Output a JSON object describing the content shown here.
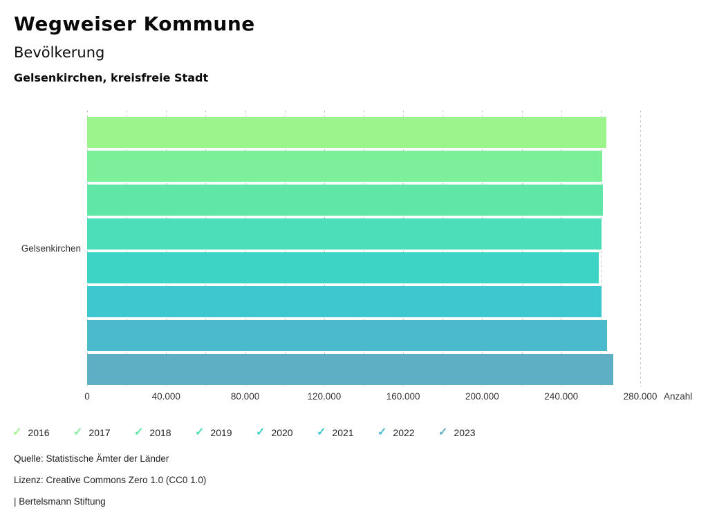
{
  "header": {
    "title": "Wegweiser Kommune",
    "subtitle": "Bevölkerung",
    "region": "Gelsenkirchen, kreisfreie Stadt"
  },
  "chart_data": {
    "type": "bar",
    "orientation": "horizontal",
    "category": "Gelsenkirchen",
    "series": [
      {
        "name": "2016",
        "value": 262800,
        "color": "#9bf58c"
      },
      {
        "name": "2017",
        "value": 260800,
        "color": "#7dee99"
      },
      {
        "name": "2018",
        "value": 261000,
        "color": "#60e7a8"
      },
      {
        "name": "2019",
        "value": 260300,
        "color": "#4bdeb8"
      },
      {
        "name": "2020",
        "value": 259100,
        "color": "#3dd4c6"
      },
      {
        "name": "2021",
        "value": 260300,
        "color": "#3fc7cf"
      },
      {
        "name": "2022",
        "value": 263200,
        "color": "#4bbacd"
      },
      {
        "name": "2023",
        "value": 266400,
        "color": "#5eaec4"
      }
    ],
    "xlabel": "Anzahl",
    "xlim": [
      0,
      280000
    ],
    "x_ticks": [
      {
        "value": 0,
        "label": "0"
      },
      {
        "value": 40000,
        "label": "40.000"
      },
      {
        "value": 80000,
        "label": "80.000"
      },
      {
        "value": 120000,
        "label": "120.000"
      },
      {
        "value": 160000,
        "label": "160.000"
      },
      {
        "value": 200000,
        "label": "200.000"
      },
      {
        "value": 240000,
        "label": "240.000"
      },
      {
        "value": 280000,
        "label": "280.000"
      }
    ],
    "grid_interval": 20000,
    "grid": true,
    "legend_position": "bottom",
    "legend_check_icon": "✓"
  },
  "footer": {
    "source": "Quelle: Statistische Ämter der Länder",
    "license": "Lizenz: Creative Commons Zero 1.0 (CC0 1.0)",
    "attribution": "| Bertelsmann Stiftung"
  }
}
